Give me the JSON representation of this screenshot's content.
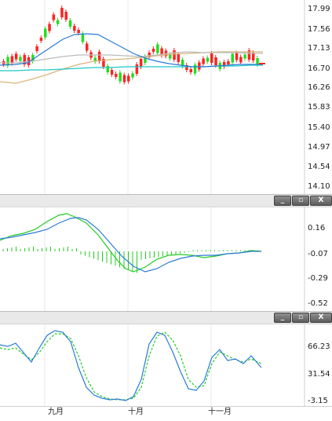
{
  "price_chart": {
    "y_labels": [
      "17.99",
      "17.56",
      "17.13",
      "16.70",
      "16.26",
      "15.83",
      "15.40",
      "14.97",
      "14.54",
      "14.10"
    ],
    "chart_data": {
      "type": "candlestick",
      "ylim": [
        14.1,
        17.99
      ],
      "overlays": [
        "ma-blue",
        "ma-gray",
        "ma-tan",
        "ma-cyan"
      ],
      "colors": {
        "up": "#ff2222",
        "down": "#22dd22"
      }
    }
  },
  "macd_panel": {
    "y_labels": [
      "0.16",
      "-0.07",
      "-0.29",
      "-0.52"
    ],
    "buttons": {
      "minimize": "_",
      "restore": "▫",
      "close": "X"
    },
    "chart_data": {
      "type": "line",
      "ylim": [
        -0.52,
        0.16
      ],
      "series_colors": [
        "#22cc22",
        "#2a7bd6"
      ]
    }
  },
  "kd_panel": {
    "y_labels": [
      "66.23",
      "31.54",
      "-3.15"
    ],
    "buttons": {
      "minimize": "_",
      "restore": "▫",
      "close": "X"
    },
    "chart_data": {
      "type": "line",
      "ylim": [
        -3.15,
        66.23
      ],
      "series_colors": [
        "#2a7bd6",
        "#22cc22"
      ]
    }
  },
  "x_axis": {
    "labels": [
      "九月",
      "十月",
      "十一月"
    ]
  }
}
